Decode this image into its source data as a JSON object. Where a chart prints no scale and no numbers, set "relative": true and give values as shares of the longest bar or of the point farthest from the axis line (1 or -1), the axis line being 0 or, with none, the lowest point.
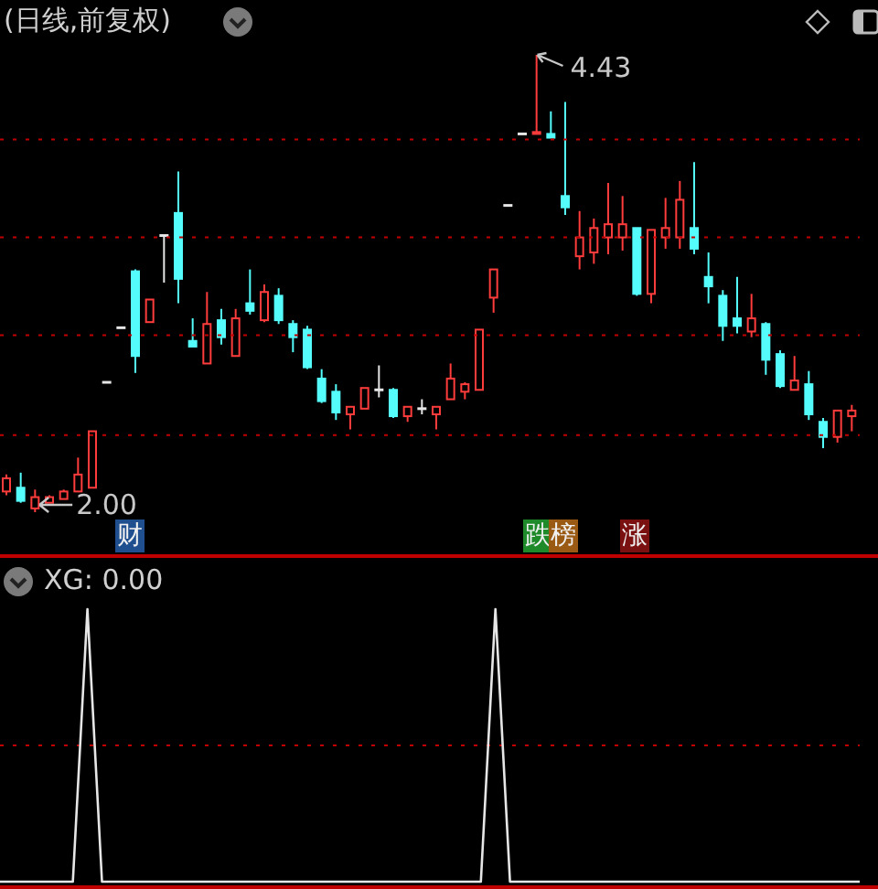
{
  "chart_data": [
    {
      "type": "candlestick",
      "title": "(日线,前复权)",
      "categories": [
        null,
        null,
        null,
        null,
        null,
        null,
        null,
        null,
        null,
        null,
        null,
        null,
        null,
        null,
        null,
        null,
        null,
        null,
        null,
        null,
        null,
        null,
        null,
        null,
        null,
        null,
        null,
        null,
        null,
        null,
        null,
        null,
        null,
        null,
        null,
        null,
        null,
        null,
        null,
        null,
        null,
        null,
        null,
        null,
        null,
        null,
        null,
        null,
        null,
        null,
        null,
        null,
        null,
        null,
        null,
        null,
        null,
        null,
        null,
        null
      ],
      "ohlc": [
        [
          2.11,
          2.2,
          2.09,
          2.18
        ],
        [
          2.13,
          2.21,
          2.05,
          2.06
        ],
        [
          2.02,
          2.12,
          2.0,
          2.08
        ],
        [
          2.05,
          2.09,
          2.05,
          2.08
        ],
        [
          2.07,
          2.12,
          2.07,
          2.11
        ],
        [
          2.11,
          2.29,
          2.11,
          2.2
        ],
        [
          2.13,
          2.43,
          2.13,
          2.43
        ],
        [
          2.69,
          2.69,
          2.69,
          2.69
        ],
        [
          2.98,
          2.98,
          2.98,
          2.98
        ],
        [
          3.28,
          3.29,
          2.74,
          2.83
        ],
        [
          3.01,
          3.13,
          3.01,
          3.13
        ],
        [
          3.47,
          3.47,
          3.22,
          3.47
        ],
        [
          3.59,
          3.81,
          3.11,
          3.24
        ],
        [
          2.91,
          3.03,
          2.88,
          2.88
        ],
        [
          2.79,
          3.17,
          2.79,
          3.0
        ],
        [
          3.02,
          3.08,
          2.89,
          2.93
        ],
        [
          2.83,
          3.08,
          2.83,
          3.03
        ],
        [
          3.11,
          3.29,
          3.05,
          3.07
        ],
        [
          3.02,
          3.21,
          3.01,
          3.17
        ],
        [
          3.15,
          3.19,
          3.0,
          3.02
        ],
        [
          3.0,
          3.02,
          2.85,
          2.93
        ],
        [
          2.97,
          2.99,
          2.76,
          2.77
        ],
        [
          2.71,
          2.76,
          2.58,
          2.59
        ],
        [
          2.64,
          2.68,
          2.49,
          2.53
        ],
        [
          2.52,
          2.56,
          2.44,
          2.56
        ],
        [
          2.55,
          2.66,
          2.55,
          2.66
        ],
        [
          2.65,
          2.78,
          2.61,
          2.65
        ],
        [
          2.65,
          2.66,
          2.5,
          2.51
        ],
        [
          2.51,
          2.56,
          2.48,
          2.56
        ],
        [
          2.55,
          2.6,
          2.52,
          2.55
        ],
        [
          2.52,
          2.56,
          2.44,
          2.56
        ],
        [
          2.6,
          2.79,
          2.6,
          2.71
        ],
        [
          2.64,
          2.69,
          2.6,
          2.68
        ],
        [
          2.65,
          2.97,
          2.65,
          2.97
        ],
        [
          3.14,
          3.29,
          3.06,
          3.29
        ],
        [
          3.63,
          3.63,
          3.63,
          3.63
        ],
        [
          4.01,
          4.01,
          4.01,
          4.01
        ],
        [
          4.01,
          4.43,
          4.01,
          4.02
        ],
        [
          4.01,
          4.13,
          3.99,
          3.99
        ],
        [
          3.68,
          4.18,
          3.58,
          3.62
        ],
        [
          3.36,
          3.6,
          3.29,
          3.46
        ],
        [
          3.38,
          3.56,
          3.32,
          3.51
        ],
        [
          3.46,
          3.75,
          3.37,
          3.53
        ],
        [
          3.46,
          3.68,
          3.39,
          3.53
        ],
        [
          3.51,
          3.51,
          3.15,
          3.16
        ],
        [
          3.16,
          3.5,
          3.11,
          3.5
        ],
        [
          3.46,
          3.67,
          3.4,
          3.51
        ],
        [
          3.46,
          3.76,
          3.4,
          3.66
        ],
        [
          3.51,
          3.86,
          3.37,
          3.4
        ],
        [
          3.25,
          3.38,
          3.11,
          3.2
        ],
        [
          3.15,
          3.18,
          2.91,
          2.99
        ],
        [
          3.03,
          3.25,
          2.95,
          2.99
        ],
        [
          2.96,
          3.16,
          2.93,
          3.03
        ],
        [
          3.0,
          3.01,
          2.73,
          2.81
        ],
        [
          2.84,
          2.86,
          2.66,
          2.67
        ],
        [
          2.65,
          2.83,
          2.65,
          2.7
        ],
        [
          2.68,
          2.75,
          2.49,
          2.52
        ],
        [
          2.48,
          2.5,
          2.34,
          2.4
        ],
        [
          2.4,
          2.54,
          2.37,
          2.54
        ],
        [
          2.51,
          2.57,
          2.43,
          2.54
        ]
      ],
      "colors": [
        "#ff3c3c",
        "#54fcfc",
        "#ff3c3c",
        "#ff3c3c",
        "#ff3c3c",
        "#ff3c3c",
        "#ff3c3c",
        "#e6e6e6",
        "#e6e6e6",
        "#54fcfc",
        "#ff3c3c",
        "#e6e6e6",
        "#54fcfc",
        "#54fcfc",
        "#ff3c3c",
        "#54fcfc",
        "#ff3c3c",
        "#54fcfc",
        "#ff3c3c",
        "#54fcfc",
        "#54fcfc",
        "#54fcfc",
        "#54fcfc",
        "#54fcfc",
        "#ff3c3c",
        "#ff3c3c",
        "#e6e6e6",
        "#54fcfc",
        "#ff3c3c",
        "#e6e6e6",
        "#ff3c3c",
        "#ff3c3c",
        "#ff3c3c",
        "#ff3c3c",
        "#ff3c3c",
        "#e6e6e6",
        "#e6e6e6",
        "#ff3c3c",
        "#54fcfc",
        "#54fcfc",
        "#ff3c3c",
        "#ff3c3c",
        "#ff3c3c",
        "#ff3c3c",
        "#54fcfc",
        "#ff3c3c",
        "#ff3c3c",
        "#ff3c3c",
        "#54fcfc",
        "#54fcfc",
        "#54fcfc",
        "#54fcfc",
        "#ff3c3c",
        "#54fcfc",
        "#54fcfc",
        "#ff3c3c",
        "#54fcfc",
        "#54fcfc",
        "#ff3c3c",
        "#ff3c3c"
      ],
      "annotations": [
        "4.43",
        "2.00",
        "财",
        "跌",
        "榜",
        "涨"
      ],
      "ref_lines": [
        {
          "axis": "y",
          "value": 3.98,
          "color": "#c00000",
          "line_style": "dotted"
        },
        {
          "axis": "y",
          "value": 3.46,
          "color": "#c00000",
          "line_style": "dotted"
        },
        {
          "axis": "y",
          "value": 2.94,
          "color": "#c00000",
          "line_style": "dotted"
        },
        {
          "axis": "y",
          "value": 2.41,
          "color": "#c00000",
          "line_style": "dotted"
        }
      ],
      "legend": false
    },
    {
      "type": "line",
      "title": "XG: 0.00",
      "relative": true,
      "categories": [
        null,
        null,
        null,
        null,
        null,
        null,
        null,
        null,
        null,
        null,
        null,
        null,
        null,
        null,
        null,
        null,
        null,
        null,
        null,
        null,
        null,
        null,
        null,
        null,
        null,
        null,
        null,
        null,
        null,
        null,
        null,
        null,
        null,
        null,
        null,
        null,
        null,
        null,
        null,
        null,
        null,
        null,
        null,
        null,
        null,
        null,
        null,
        null,
        null,
        null,
        null,
        null,
        null,
        null,
        null,
        null,
        null,
        null,
        null,
        null
      ],
      "series": [
        {
          "color": "#e6e6e6",
          "values": [
            0,
            0,
            0,
            0,
            0,
            0,
            1,
            0,
            0,
            0,
            0,
            0,
            0,
            0,
            0,
            0,
            0,
            0,
            0,
            0,
            0,
            0,
            0,
            0,
            0,
            0,
            0,
            0,
            0,
            0,
            0,
            0,
            0,
            0,
            1,
            0,
            0,
            0,
            0,
            0,
            0,
            0,
            0,
            0,
            0,
            0,
            0,
            0,
            0,
            0,
            0,
            0,
            0,
            0,
            0,
            0,
            0,
            0,
            0,
            0
          ]
        }
      ],
      "ref_lines": [
        {
          "axis": "y",
          "value": 0.5,
          "color": "#c00000",
          "line_style": "dotted"
        }
      ],
      "legend": false,
      "marker": "none",
      "line_style": "solid"
    }
  ]
}
